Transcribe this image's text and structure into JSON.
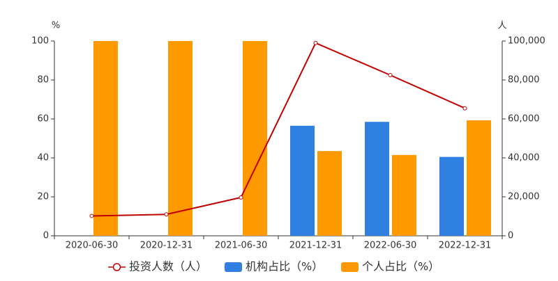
{
  "chart_data": {
    "type": "bar-line",
    "y_label": "%",
    "y2_label": "人",
    "categories": [
      "2020-06-30",
      "2020-12-31",
      "2021-06-30",
      "2021-12-31",
      "2022-06-30",
      "2022-12-31"
    ],
    "series": [
      {
        "name": "投资人数（人）",
        "type": "line",
        "axis": "y2",
        "color": "#c00000",
        "values": [
          10200,
          11000,
          19700,
          99000,
          82500,
          65500
        ]
      },
      {
        "name": "机构占比（%）",
        "type": "bar",
        "color": "#2f80e0",
        "values": [
          null,
          null,
          null,
          56.5,
          58.5,
          40.5
        ]
      },
      {
        "name": "个人占比（%）",
        "type": "bar",
        "color": "#ff9900",
        "values": [
          100,
          100,
          100,
          43.5,
          41.5,
          59.3
        ]
      }
    ],
    "ylim": [
      0,
      100
    ],
    "yticks": [
      0,
      20,
      40,
      60,
      80,
      100
    ],
    "y2lim": [
      0,
      100000
    ],
    "y2ticks": [
      0,
      {
        "value": 20000,
        "label": "20,000"
      },
      {
        "value": 40000,
        "label": "40,000"
      },
      {
        "value": 60000,
        "label": "60,000"
      },
      {
        "value": 80000,
        "label": "80,000"
      },
      {
        "value": 100000,
        "label": "100,000"
      }
    ]
  }
}
